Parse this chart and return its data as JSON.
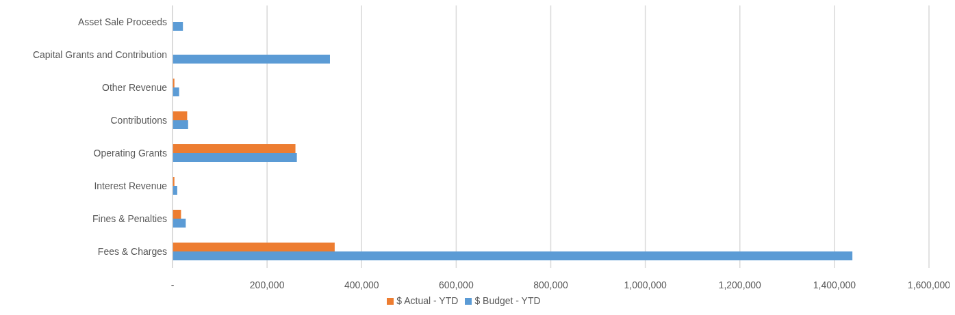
{
  "chart_data": {
    "type": "bar",
    "orientation": "horizontal",
    "categories": [
      "Asset Sale Proceeds",
      "Capital Grants and Contribution",
      "Other Revenue",
      "Contributions",
      "Operating Grants",
      "Interest Revenue",
      "Fines & Penalties",
      "Fees & Charges"
    ],
    "series": [
      {
        "name": "$ Actual - YTD",
        "color": "#ed7d31",
        "values": [
          null,
          null,
          4000,
          31000,
          260000,
          4000,
          18000,
          343000
        ]
      },
      {
        "name": "$ Budget - YTD",
        "color": "#5b9bd5",
        "values": [
          22000,
          333000,
          14000,
          33000,
          263000,
          10000,
          28000,
          1438000
        ]
      }
    ],
    "xlim": [
      0,
      1600000
    ],
    "xticks": [
      {
        "value": 0,
        "label": "-"
      },
      {
        "value": 200000,
        "label": "200,000"
      },
      {
        "value": 400000,
        "label": "400,000"
      },
      {
        "value": 600000,
        "label": "600,000"
      },
      {
        "value": 800000,
        "label": "800,000"
      },
      {
        "value": 1000000,
        "label": "1,000,000"
      },
      {
        "value": 1200000,
        "label": "1,200,000"
      },
      {
        "value": 1400000,
        "label": "1,400,000"
      },
      {
        "value": 1600000,
        "label": "1,600,000"
      }
    ],
    "grid": "x",
    "legend": "bottom"
  }
}
